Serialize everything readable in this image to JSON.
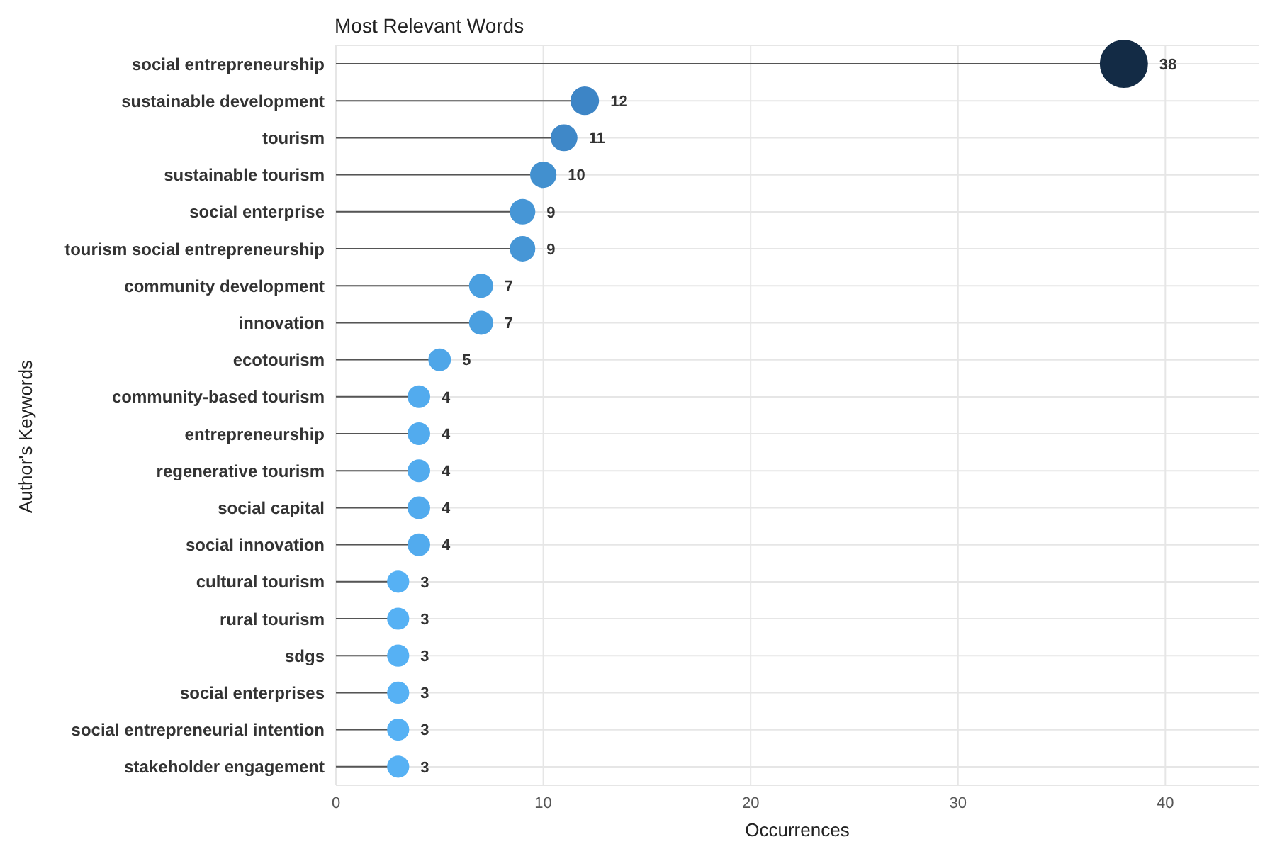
{
  "chart_data": {
    "type": "lollipop",
    "orientation": "horizontal",
    "title": "Most Relevant Words",
    "xlabel": "Occurrences",
    "ylabel": "Author's Keywords",
    "categories": [
      "social entrepreneurship",
      "sustainable development",
      "tourism",
      "sustainable tourism",
      "social enterprise",
      "tourism social entrepreneurship",
      "community development",
      "innovation",
      "ecotourism",
      "community-based tourism",
      "entrepreneurship",
      "regenerative tourism",
      "social capital",
      "social innovation",
      "cultural tourism",
      "rural tourism",
      "sdgs",
      "social enterprises",
      "social entrepreneurial intention",
      "stakeholder engagement"
    ],
    "values": [
      38,
      12,
      11,
      10,
      9,
      9,
      7,
      7,
      5,
      4,
      4,
      4,
      4,
      4,
      3,
      3,
      3,
      3,
      3,
      3
    ],
    "colors": [
      "#132b45",
      "#3d85c6",
      "#3f88c8",
      "#4290cf",
      "#4696d6",
      "#4696d6",
      "#4a9fe0",
      "#4a9fe0",
      "#4fa6e8",
      "#52abee",
      "#52abee",
      "#52abee",
      "#52abee",
      "#52abee",
      "#56b1f4",
      "#56b1f4",
      "#56b1f4",
      "#56b1f4",
      "#56b1f4",
      "#56b1f4"
    ],
    "sizes": [
      1,
      0.35,
      0.31,
      0.3,
      0.28,
      0.28,
      0.25,
      0.25,
      0.22,
      0.22,
      0.22,
      0.22,
      0.22,
      0.22,
      0.21,
      0.21,
      0.21,
      0.21,
      0.21,
      0.21
    ],
    "xlim": [
      0,
      44.5
    ],
    "xticks": [
      0,
      10,
      20,
      30,
      40
    ],
    "grid": true,
    "data_labels": true,
    "marker": "circle"
  }
}
